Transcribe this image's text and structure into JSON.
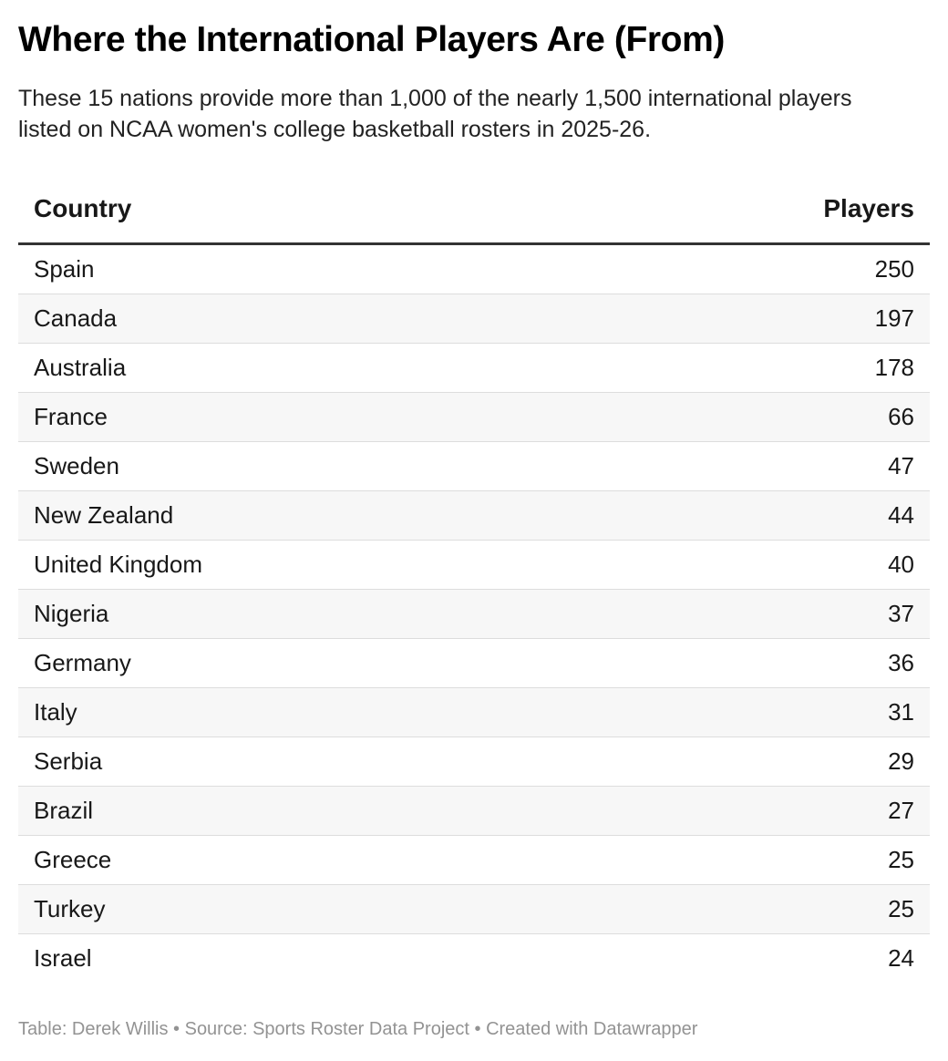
{
  "title": "Where the International Players Are (From)",
  "subtitle": "These 15 nations provide more than 1,000 of the nearly 1,500 international players listed on NCAA women's college basketball rosters in 2025-26.",
  "footer": "Table: Derek Willis • Source: Sports Roster Data Project • Created with Datawrapper",
  "chart_data": {
    "type": "table",
    "columns": [
      "Country",
      "Players"
    ],
    "rows": [
      [
        "Spain",
        "250"
      ],
      [
        "Canada",
        "197"
      ],
      [
        "Australia",
        "178"
      ],
      [
        "France",
        "66"
      ],
      [
        "Sweden",
        "47"
      ],
      [
        "New Zealand",
        "44"
      ],
      [
        "United Kingdom",
        "40"
      ],
      [
        "Nigeria",
        "37"
      ],
      [
        "Germany",
        "36"
      ],
      [
        "Italy",
        "31"
      ],
      [
        "Serbia",
        "29"
      ],
      [
        "Brazil",
        "27"
      ],
      [
        "Greece",
        "25"
      ],
      [
        "Turkey",
        "25"
      ],
      [
        "Israel",
        "24"
      ]
    ]
  }
}
